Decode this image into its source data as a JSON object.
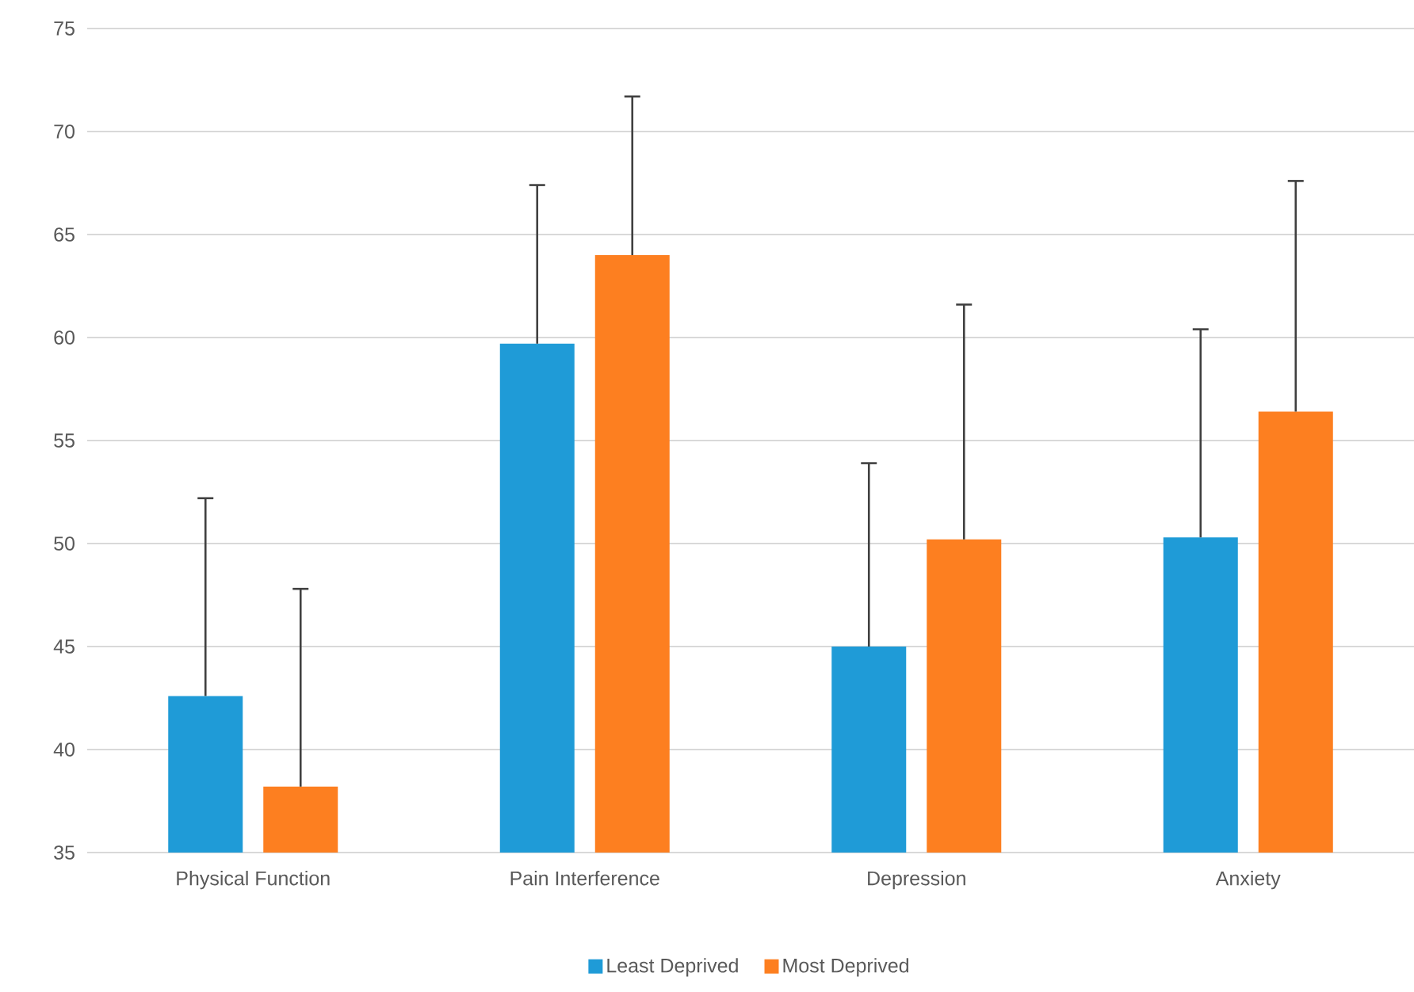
{
  "chart_data": {
    "type": "bar",
    "categories": [
      "Physical Function",
      "Pain Interference",
      "Depression",
      "Anxiety"
    ],
    "series": [
      {
        "name": "Least Deprived",
        "color": "#1f9bd7",
        "values": [
          42.6,
          59.7,
          45.0,
          50.3
        ],
        "errors": [
          [
            42.6,
            52.2
          ],
          [
            59.7,
            67.4
          ],
          [
            45.0,
            53.9
          ],
          [
            50.3,
            60.4
          ]
        ]
      },
      {
        "name": "Most Deprived",
        "color": "#fd7f20",
        "values": [
          38.2,
          64.0,
          50.2,
          56.4
        ],
        "errors": [
          [
            38.2,
            47.8
          ],
          [
            64.0,
            71.7
          ],
          [
            50.2,
            61.6
          ],
          [
            56.4,
            67.6
          ]
        ]
      }
    ],
    "ylim": [
      35,
      75
    ],
    "yticks": [
      35,
      40,
      45,
      50,
      55,
      60,
      65,
      70,
      75
    ],
    "grid": "y",
    "legend": "bottom"
  }
}
